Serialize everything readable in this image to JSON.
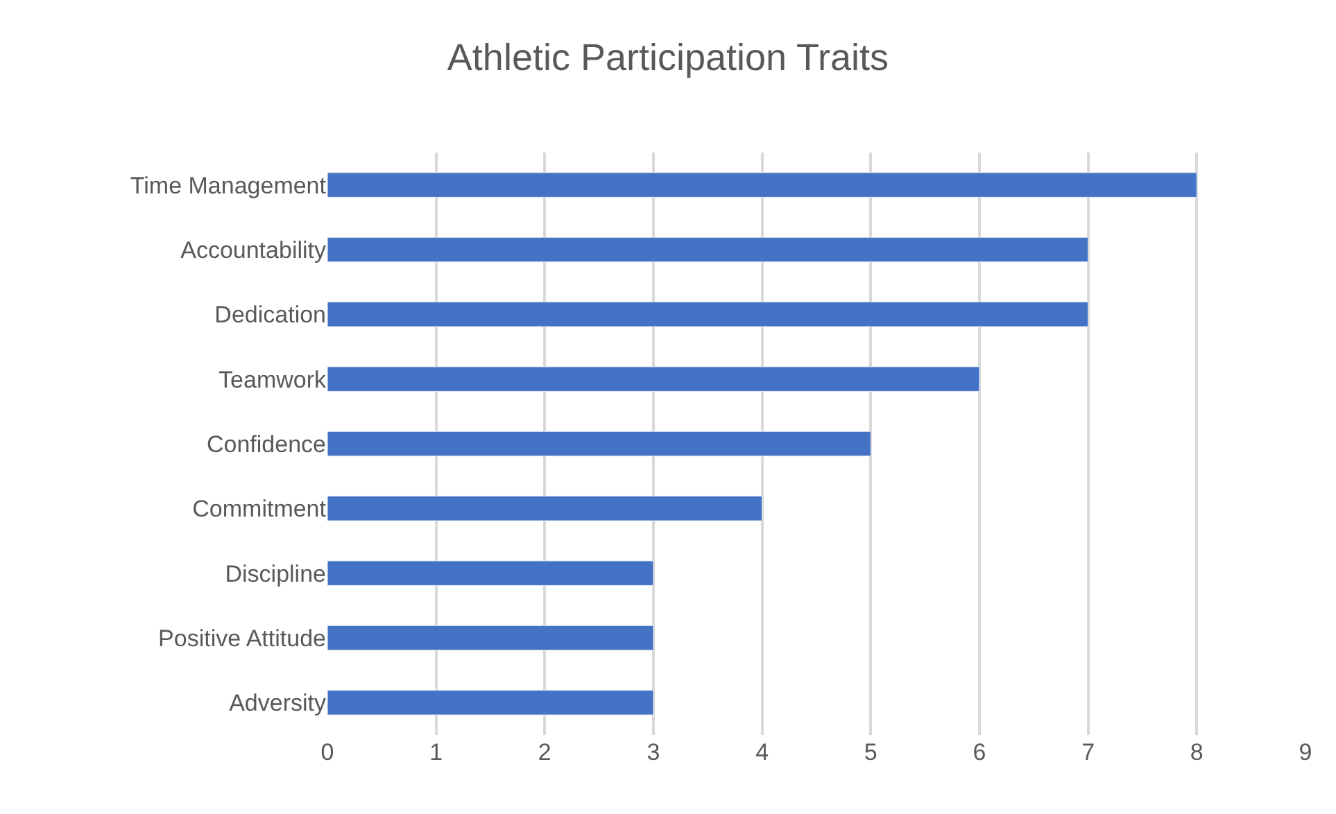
{
  "chart_data": {
    "type": "bar",
    "orientation": "horizontal",
    "title": "Athletic Participation Traits",
    "categories": [
      "Time Management",
      "Accountability",
      "Dedication",
      "Teamwork",
      "Confidence",
      "Commitment",
      "Discipline",
      "Positive Attitude",
      "Adversity"
    ],
    "values": [
      8,
      7,
      7,
      6,
      5,
      4,
      3,
      3,
      3
    ],
    "color": "#4472c4",
    "xlim": [
      0,
      9
    ],
    "xticks": [
      0,
      1,
      2,
      3,
      4,
      5,
      6,
      7,
      8,
      9
    ],
    "grid": "x"
  }
}
